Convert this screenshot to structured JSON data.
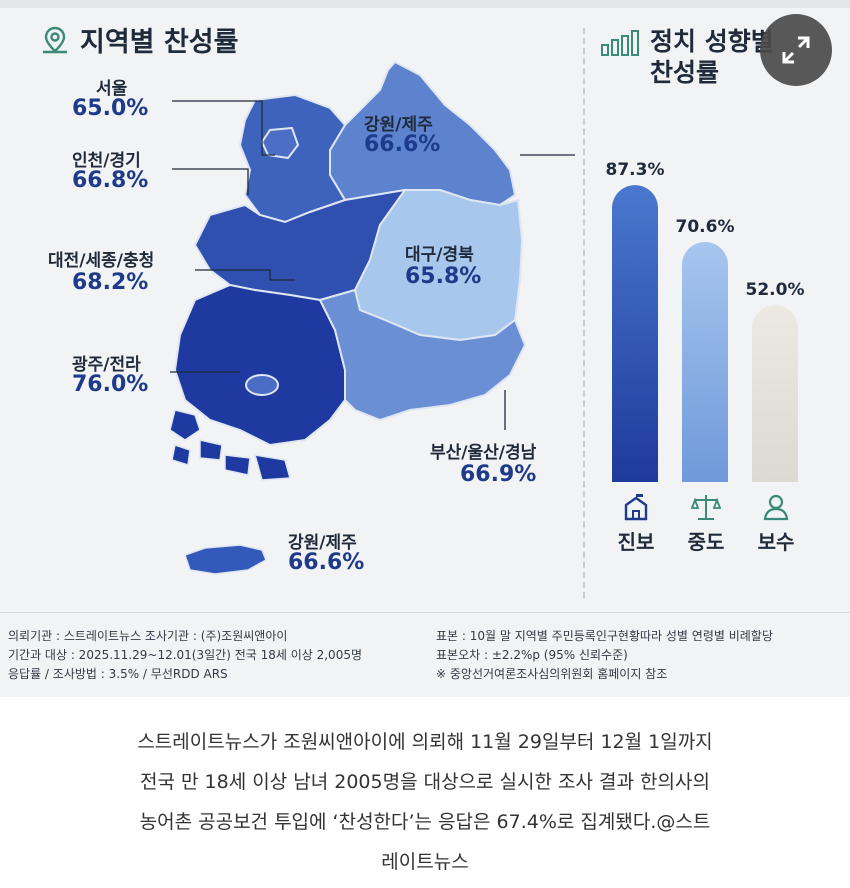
{
  "titles": {
    "region": "지역별 찬성률",
    "political_line1": "정치 성향별",
    "political_line2": "찬성률"
  },
  "regions": {
    "seoul": {
      "label": "서울",
      "value": "65.0%"
    },
    "incheon": {
      "label": "인천/경기",
      "value": "66.8%"
    },
    "chungcheong": {
      "label": "대전/세종/충청",
      "value": "68.2%"
    },
    "jeolla": {
      "label": "광주/전라",
      "value": "76.0%"
    },
    "gangwon": {
      "label": "강원/제주",
      "value": "66.6%"
    },
    "daegu": {
      "label": "대구/경북",
      "value": "65.8%"
    },
    "busan": {
      "label": "부산/울산/경남",
      "value": "66.9%"
    },
    "jeju": {
      "label": "강원/제주",
      "value": "66.6%"
    }
  },
  "chart_data": [
    {
      "type": "bar",
      "title": "정치 성향별 찬성률",
      "categories": [
        "진보",
        "중도",
        "보수"
      ],
      "values": [
        87.3,
        70.6,
        52.0
      ],
      "value_labels": [
        "87.3%",
        "70.6%",
        "52.0%"
      ],
      "ylim": [
        0,
        100
      ],
      "grid": false,
      "colors": [
        "#2f56b0",
        "#8db4e3",
        "#e3e1da"
      ]
    },
    {
      "type": "choropleth",
      "title": "지역별 찬성률",
      "categories": [
        "서울",
        "인천/경기",
        "대전/세종/충청",
        "광주/전라",
        "강원/제주",
        "대구/경북",
        "부산/울산/경남"
      ],
      "values": [
        65.0,
        66.8,
        68.2,
        76.0,
        66.6,
        65.8,
        66.9
      ]
    }
  ],
  "icons": {
    "map": "map-pin-icon",
    "chart": "bar-chart-icon",
    "progressive": "house-flag-icon",
    "moderate": "scales-icon",
    "conservative": "person-icon",
    "expand": "expand-arrows-icon"
  },
  "footer": {
    "left": [
      "의뢰기관 : 스트레이트뉴스          조사기관 : (주)조원씨앤아이",
      "기간과 대상 : 2025.11.29~12.01(3일간)   전국 18세 이상  2,005명",
      "응답률 / 조사방법 : 3.5% / 무선RDD ARS"
    ],
    "right": [
      "표본 : 10월 말 지역별 주민등록인구현황따라 성별 연령별 비례할당",
      "표본오차 : ±2.2%p (95% 신뢰수준)",
      "※ 중앙선거여론조사심의위원회 홈페이지 참조"
    ]
  },
  "caption": [
    "스트레이트뉴스가 조원씨앤아이에 의뢰해 11월 29일부터 12월 1일까지",
    "전국 만 18세 이상 남녀 2005명을 대상으로 실시한 조사 결과 한의사의",
    "농어촌 공공보건 투입에 ‘찬성한다’는 응답은 67.4%로 집계됐다.@스트",
    "레이트뉴스"
  ]
}
